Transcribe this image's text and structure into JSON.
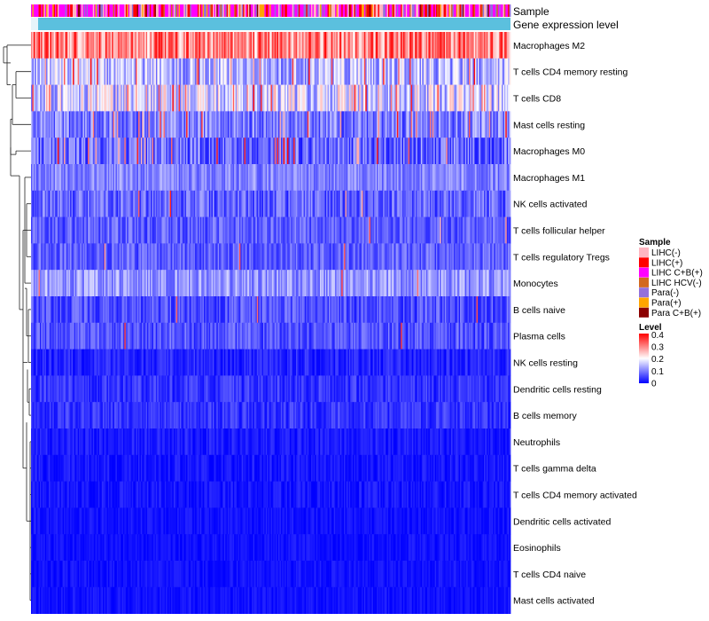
{
  "chart_data": {
    "type": "heatmap",
    "title": "",
    "annotation_tracks": [
      {
        "name": "Sample"
      },
      {
        "name": "Gene expression level"
      }
    ],
    "rows": [
      {
        "label": "Macrophages M2",
        "mean": 0.27,
        "var": 0.09,
        "hi": 0.02
      },
      {
        "label": "T cells CD4 memory resting",
        "mean": 0.12,
        "var": 0.07,
        "hi": 0.08
      },
      {
        "label": "T cells CD8",
        "mean": 0.14,
        "var": 0.08,
        "hi": 0.1
      },
      {
        "label": "Mast cells resting",
        "mean": 0.08,
        "var": 0.06,
        "hi": 0.05
      },
      {
        "label": "Macrophages M0",
        "mean": 0.06,
        "var": 0.06,
        "hi": 0.06
      },
      {
        "label": "Macrophages M1",
        "mean": 0.09,
        "var": 0.04,
        "hi": 0.0
      },
      {
        "label": "NK cells activated",
        "mean": 0.06,
        "var": 0.05,
        "hi": 0.01
      },
      {
        "label": "T cells follicular helper",
        "mean": 0.06,
        "var": 0.04,
        "hi": 0.01
      },
      {
        "label": "T cells regulatory  Tregs",
        "mean": 0.06,
        "var": 0.04,
        "hi": 0.01
      },
      {
        "label": "Monocytes",
        "mean": 0.1,
        "var": 0.05,
        "hi": 0.01
      },
      {
        "label": "B cells naive",
        "mean": 0.05,
        "var": 0.04,
        "hi": 0.01
      },
      {
        "label": "Plasma cells",
        "mean": 0.05,
        "var": 0.04,
        "hi": 0.01
      },
      {
        "label": "NK cells resting",
        "mean": 0.02,
        "var": 0.025,
        "hi": 0.0
      },
      {
        "label": "Dendritic cells resting",
        "mean": 0.03,
        "var": 0.03,
        "hi": 0.0
      },
      {
        "label": "B cells memory",
        "mean": 0.03,
        "var": 0.03,
        "hi": 0.0
      },
      {
        "label": "Neutrophils",
        "mean": 0.015,
        "var": 0.02,
        "hi": 0.0
      },
      {
        "label": "T cells gamma delta",
        "mean": 0.01,
        "var": 0.02,
        "hi": 0.0
      },
      {
        "label": "T cells CD4 memory activated",
        "mean": 0.01,
        "var": 0.02,
        "hi": 0.0
      },
      {
        "label": "Dendritic cells activated",
        "mean": 0.01,
        "var": 0.015,
        "hi": 0.0
      },
      {
        "label": "Eosinophils",
        "mean": 0.008,
        "var": 0.015,
        "hi": 0.0
      },
      {
        "label": "T cells CD4 naive",
        "mean": 0.008,
        "var": 0.015,
        "hi": 0.0
      },
      {
        "label": "Mast cells activated",
        "mean": 0.008,
        "var": 0.015,
        "hi": 0.0
      }
    ],
    "legend_sample": {
      "title": "Sample",
      "entries": [
        {
          "label": "LIHC(-)",
          "color": "#FFB6C1"
        },
        {
          "label": "LIHC(+)",
          "color": "#FF0000"
        },
        {
          "label": "LIHC C+B(+)",
          "color": "#FF00FF"
        },
        {
          "label": "LIHC HCV(-)",
          "color": "#D2691E"
        },
        {
          "label": "Para(-)",
          "color": "#9370DB"
        },
        {
          "label": "Para(+)",
          "color": "#FFA500"
        },
        {
          "label": "Para C+B(+)",
          "color": "#8B0000"
        }
      ]
    },
    "legend_level": {
      "title": "Level",
      "ticks": [
        "0.4",
        "0.3",
        "0.2",
        "0.1",
        "0"
      ],
      "range": [
        0,
        0.4
      ]
    },
    "gene_expression_color": "#5BC0DE",
    "color_scale": [
      "#0000FF",
      "#FFFFFF",
      "#FF0000"
    ]
  }
}
